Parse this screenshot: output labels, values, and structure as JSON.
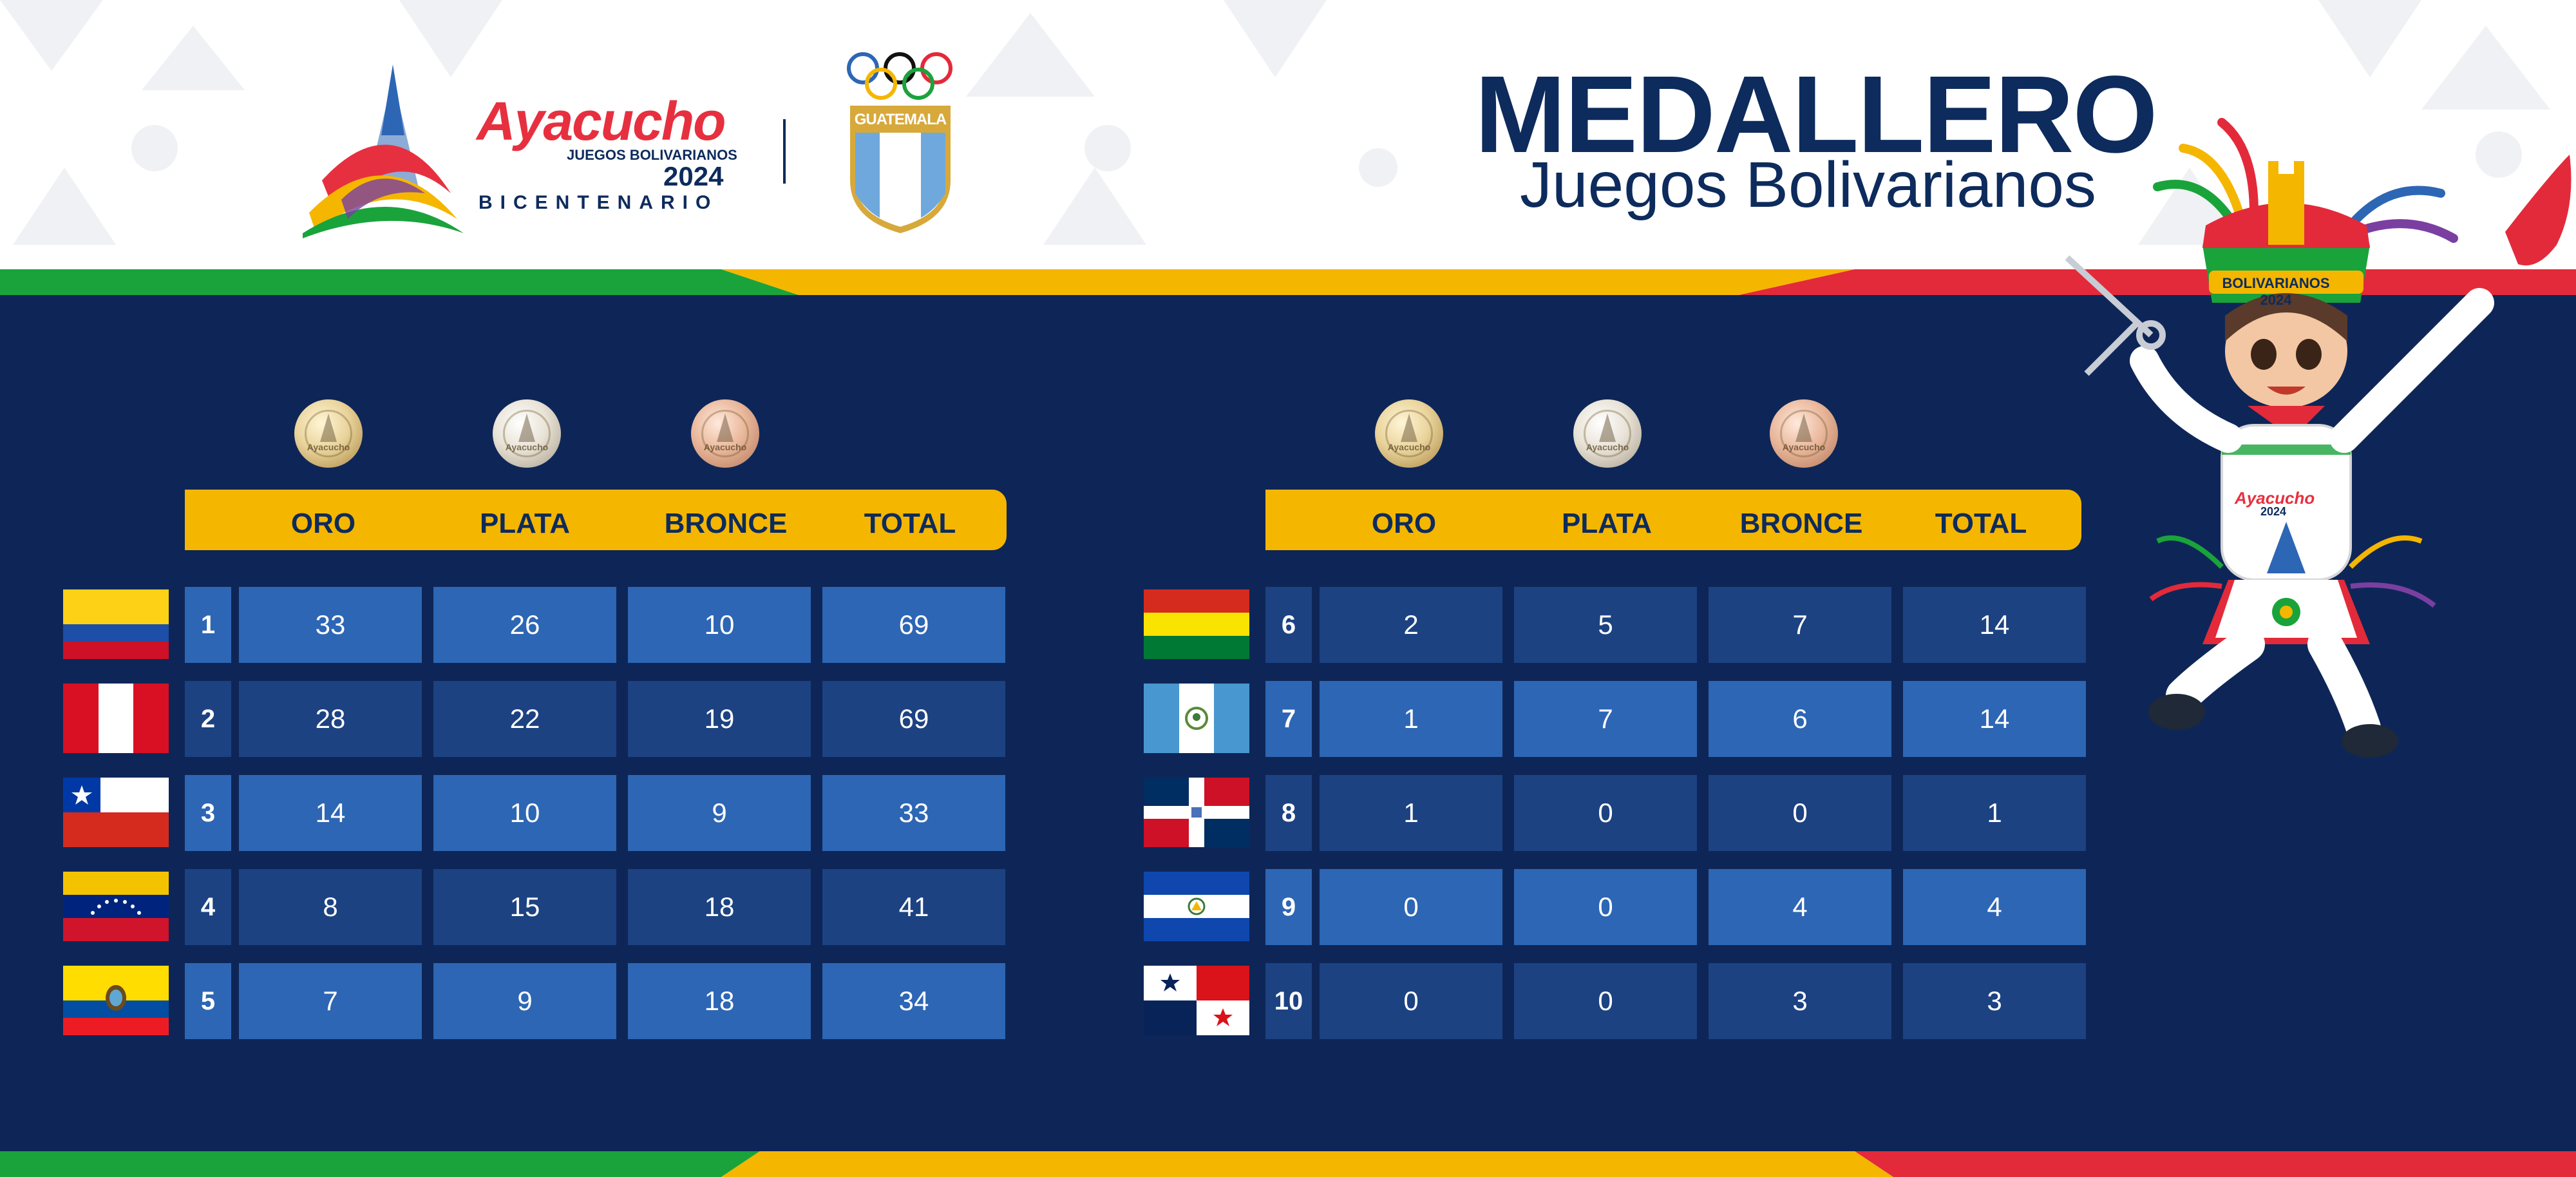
{
  "header": {
    "logo": {
      "name": "Ayacucho",
      "subtitle": "JUEGOS BOLIVARIANOS",
      "year": "2024",
      "tagline": "BICENTENARIO"
    },
    "federation_shield_label": "GUATEMALA",
    "title": "MEDALLERO",
    "subtitle": "Juegos Bolivarianos"
  },
  "medal_icons": [
    "gold-medal-icon",
    "silver-medal-icon",
    "bronze-medal-icon"
  ],
  "columns": [
    "ORO",
    "PLATA",
    "BRONCE",
    "TOTAL"
  ],
  "standings": [
    {
      "rank": "1",
      "flag": "colombia-flag-icon",
      "oro": "33",
      "plata": "26",
      "bronce": "10",
      "total": "69"
    },
    {
      "rank": "2",
      "flag": "peru-flag-icon",
      "oro": "28",
      "plata": "22",
      "bronce": "19",
      "total": "69"
    },
    {
      "rank": "3",
      "flag": "chile-flag-icon",
      "oro": "14",
      "plata": "10",
      "bronce": "9",
      "total": "33"
    },
    {
      "rank": "4",
      "flag": "venezuela-flag-icon",
      "oro": "8",
      "plata": "15",
      "bronce": "18",
      "total": "41"
    },
    {
      "rank": "5",
      "flag": "ecuador-flag-icon",
      "oro": "7",
      "plata": "9",
      "bronce": "18",
      "total": "34"
    },
    {
      "rank": "6",
      "flag": "bolivia-flag-icon",
      "oro": "2",
      "plata": "5",
      "bronce": "7",
      "total": "14"
    },
    {
      "rank": "7",
      "flag": "guatemala-flag-icon",
      "oro": "1",
      "plata": "7",
      "bronce": "6",
      "total": "14"
    },
    {
      "rank": "8",
      "flag": "dominican-republic-flag-icon",
      "oro": "1",
      "plata": "0",
      "bronce": "0",
      "total": "1"
    },
    {
      "rank": "9",
      "flag": "el-salvador-flag-icon",
      "oro": "0",
      "plata": "0",
      "bronce": "4",
      "total": "4"
    },
    {
      "rank": "10",
      "flag": "panama-flag-icon",
      "oro": "0",
      "plata": "0",
      "bronce": "3",
      "total": "3"
    }
  ],
  "mascot": {
    "hat_label": "BOLIVARIANOS 2024",
    "shirt_label": "Ayacucho",
    "shirt_year": "2024"
  },
  "colors": {
    "navy": "#0e2657",
    "title_navy": "#0d2b5c",
    "header_bar_yellow": "#f5b600",
    "cell_light": "#2d66b4",
    "cell_dark": "#1c4282",
    "stripe_green": "#1aa33b",
    "stripe_yellow": "#f5b600",
    "stripe_red": "#e32a3a",
    "brand_red": "#e7303f"
  }
}
